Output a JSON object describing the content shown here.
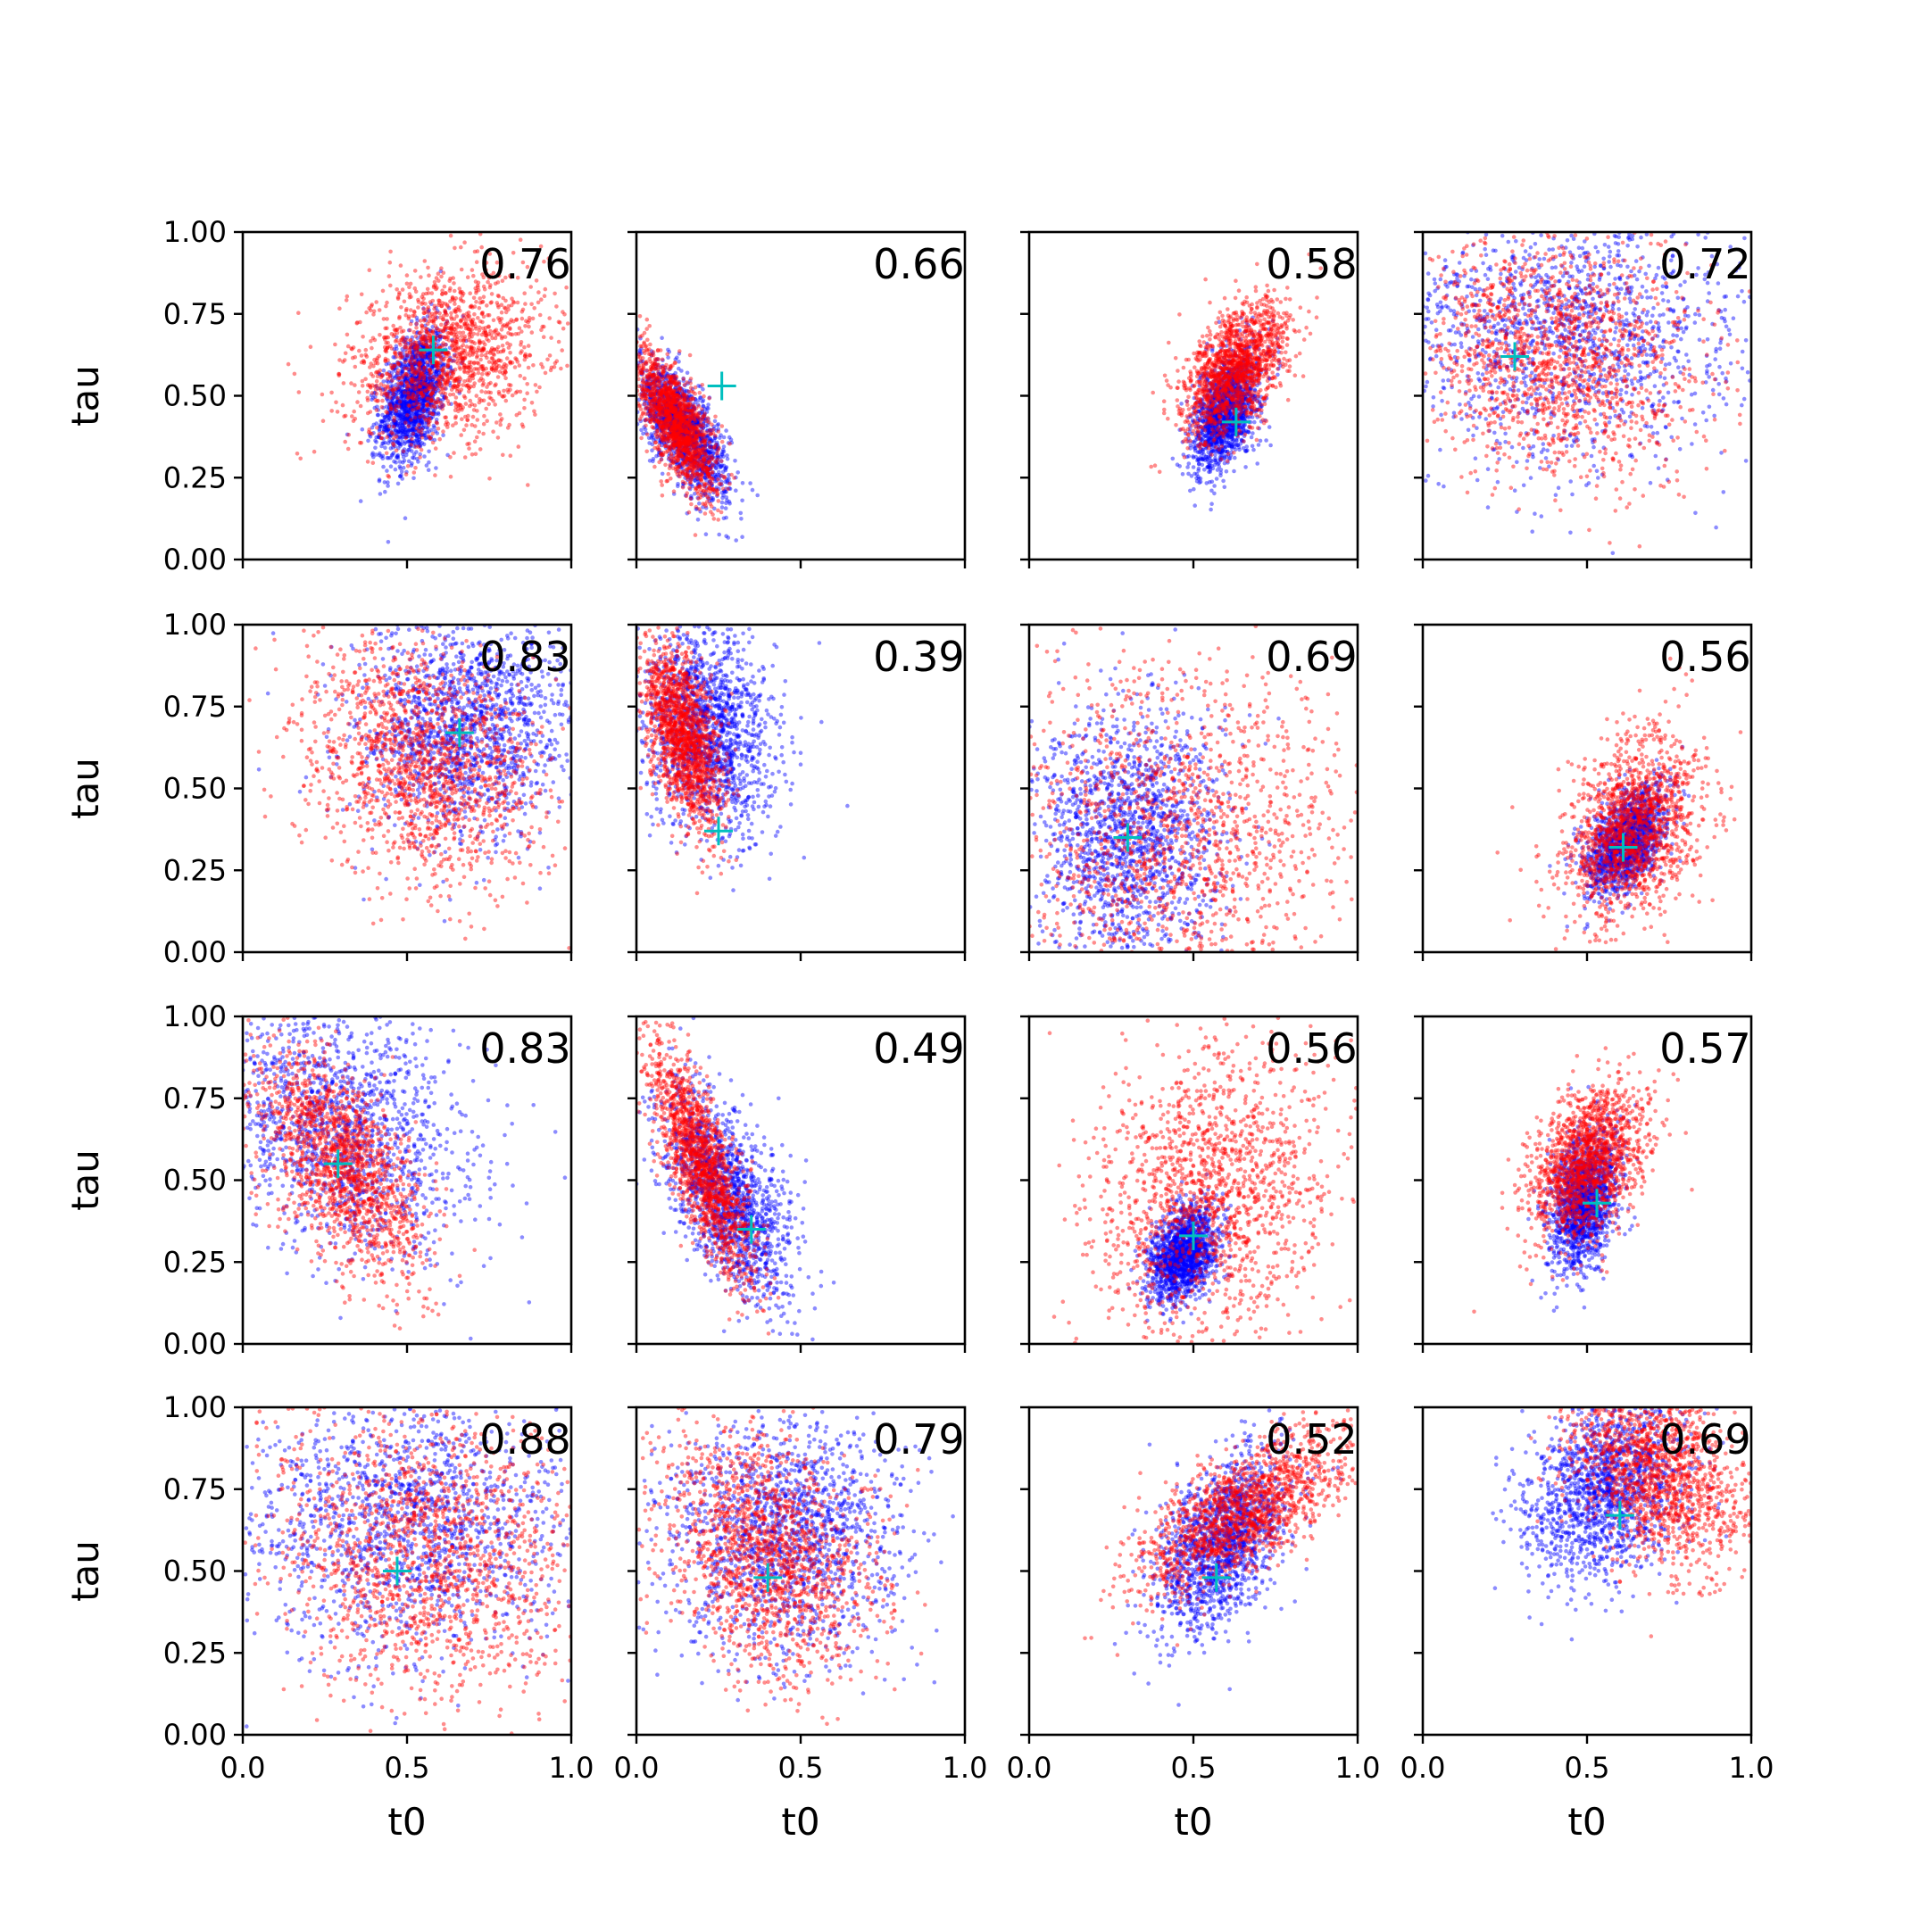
{
  "chart_data": {
    "type": "scatter",
    "layout": "4x4 grid of subplots, shared axes",
    "xlabel": "t0",
    "ylabel": "tau",
    "xlim": [
      0.0,
      1.0
    ],
    "ylim": [
      0.0,
      1.0
    ],
    "x_ticks": [
      "0.0",
      "0.5",
      "1.0"
    ],
    "y_ticks": [
      "0.00",
      "0.25",
      "0.50",
      "0.75",
      "1.00"
    ],
    "grid": false,
    "colors": {
      "series_a": "#0000ff",
      "series_b": "#ff0000",
      "marker": "#00bfbf"
    },
    "series": [
      {
        "color": "blue",
        "marker": "point"
      },
      {
        "color": "red",
        "marker": "point"
      }
    ],
    "panels": [
      {
        "label": "0.76",
        "cross": [
          0.58,
          0.64
        ],
        "blue": {
          "cx": 0.52,
          "cy": 0.5,
          "sx": 0.05,
          "sy": 0.1,
          "rho": 0.4
        },
        "red": {
          "cx": 0.62,
          "cy": 0.62,
          "sx": 0.15,
          "sy": 0.13,
          "rho": 0.2
        }
      },
      {
        "label": "0.66",
        "cross": [
          0.26,
          0.53
        ],
        "blue": {
          "cx": 0.14,
          "cy": 0.4,
          "sx": 0.07,
          "sy": 0.1,
          "rho": -0.7
        },
        "red": {
          "cx": 0.12,
          "cy": 0.42,
          "sx": 0.06,
          "sy": 0.11,
          "rho": -0.7
        }
      },
      {
        "label": "0.58",
        "cross": [
          0.63,
          0.42
        ],
        "blue": {
          "cx": 0.6,
          "cy": 0.45,
          "sx": 0.05,
          "sy": 0.09,
          "rho": 0.5
        },
        "red": {
          "cx": 0.63,
          "cy": 0.58,
          "sx": 0.08,
          "sy": 0.1,
          "rho": 0.5
        }
      },
      {
        "label": "0.72",
        "cross": [
          0.28,
          0.62
        ],
        "blue": {
          "cx": 0.45,
          "cy": 0.7,
          "sx": 0.28,
          "sy": 0.2,
          "rho": 0.0
        },
        "red": {
          "cx": 0.4,
          "cy": 0.62,
          "sx": 0.22,
          "sy": 0.18,
          "rho": -0.1
        }
      },
      {
        "label": "0.83",
        "cross": [
          0.66,
          0.67
        ],
        "blue": {
          "cx": 0.68,
          "cy": 0.68,
          "sx": 0.17,
          "sy": 0.17,
          "rho": 0.1
        },
        "red": {
          "cx": 0.55,
          "cy": 0.58,
          "sx": 0.18,
          "sy": 0.18,
          "rho": -0.2
        }
      },
      {
        "label": "0.39",
        "cross": [
          0.25,
          0.37
        ],
        "blue": {
          "cx": 0.22,
          "cy": 0.68,
          "sx": 0.1,
          "sy": 0.16,
          "rho": -0.2
        },
        "red": {
          "cx": 0.14,
          "cy": 0.66,
          "sx": 0.06,
          "sy": 0.14,
          "rho": -0.5
        }
      },
      {
        "label": "0.69",
        "cross": [
          0.3,
          0.35
        ],
        "blue": {
          "cx": 0.3,
          "cy": 0.35,
          "sx": 0.14,
          "sy": 0.2,
          "rho": 0.0
        },
        "red": {
          "cx": 0.45,
          "cy": 0.35,
          "sx": 0.28,
          "sy": 0.26,
          "rho": 0.0
        }
      },
      {
        "label": "0.56",
        "cross": [
          0.61,
          0.32
        ],
        "blue": {
          "cx": 0.62,
          "cy": 0.34,
          "sx": 0.06,
          "sy": 0.08,
          "rho": 0.5
        },
        "red": {
          "cx": 0.64,
          "cy": 0.38,
          "sx": 0.1,
          "sy": 0.14,
          "rho": 0.3
        }
      },
      {
        "label": "0.83",
        "cross": [
          0.29,
          0.55
        ],
        "blue": {
          "cx": 0.3,
          "cy": 0.65,
          "sx": 0.2,
          "sy": 0.2,
          "rho": -0.3
        },
        "red": {
          "cx": 0.3,
          "cy": 0.55,
          "sx": 0.13,
          "sy": 0.18,
          "rho": -0.6
        }
      },
      {
        "label": "0.49",
        "cross": [
          0.35,
          0.35
        ],
        "blue": {
          "cx": 0.28,
          "cy": 0.45,
          "sx": 0.1,
          "sy": 0.16,
          "rho": -0.6
        },
        "red": {
          "cx": 0.2,
          "cy": 0.55,
          "sx": 0.08,
          "sy": 0.18,
          "rho": -0.8
        }
      },
      {
        "label": "0.56",
        "cross": [
          0.5,
          0.33
        ],
        "blue": {
          "cx": 0.47,
          "cy": 0.28,
          "sx": 0.05,
          "sy": 0.07,
          "rho": 0.3
        },
        "red": {
          "cx": 0.55,
          "cy": 0.45,
          "sx": 0.18,
          "sy": 0.22,
          "rho": 0.2
        }
      },
      {
        "label": "0.57",
        "cross": [
          0.53,
          0.43
        ],
        "blue": {
          "cx": 0.49,
          "cy": 0.43,
          "sx": 0.05,
          "sy": 0.1,
          "rho": 0.3
        },
        "red": {
          "cx": 0.5,
          "cy": 0.55,
          "sx": 0.09,
          "sy": 0.12,
          "rho": 0.4
        }
      },
      {
        "label": "0.88",
        "cross": [
          0.47,
          0.5
        ],
        "blue": {
          "cx": 0.5,
          "cy": 0.65,
          "sx": 0.25,
          "sy": 0.2,
          "rho": 0.0
        },
        "red": {
          "cx": 0.55,
          "cy": 0.55,
          "sx": 0.22,
          "sy": 0.23,
          "rho": -0.1
        }
      },
      {
        "label": "0.79",
        "cross": [
          0.4,
          0.48
        ],
        "blue": {
          "cx": 0.45,
          "cy": 0.6,
          "sx": 0.18,
          "sy": 0.18,
          "rho": 0.0
        },
        "red": {
          "cx": 0.4,
          "cy": 0.55,
          "sx": 0.16,
          "sy": 0.18,
          "rho": -0.3
        }
      },
      {
        "label": "0.52",
        "cross": [
          0.57,
          0.48
        ],
        "blue": {
          "cx": 0.58,
          "cy": 0.58,
          "sx": 0.1,
          "sy": 0.14,
          "rho": 0.5
        },
        "red": {
          "cx": 0.65,
          "cy": 0.68,
          "sx": 0.16,
          "sy": 0.12,
          "rho": 0.7
        }
      },
      {
        "label": "0.69",
        "cross": [
          0.6,
          0.67
        ],
        "blue": {
          "cx": 0.55,
          "cy": 0.75,
          "sx": 0.12,
          "sy": 0.14,
          "rho": 0.2
        },
        "red": {
          "cx": 0.72,
          "cy": 0.8,
          "sx": 0.13,
          "sy": 0.15,
          "rho": -0.3
        }
      }
    ]
  }
}
